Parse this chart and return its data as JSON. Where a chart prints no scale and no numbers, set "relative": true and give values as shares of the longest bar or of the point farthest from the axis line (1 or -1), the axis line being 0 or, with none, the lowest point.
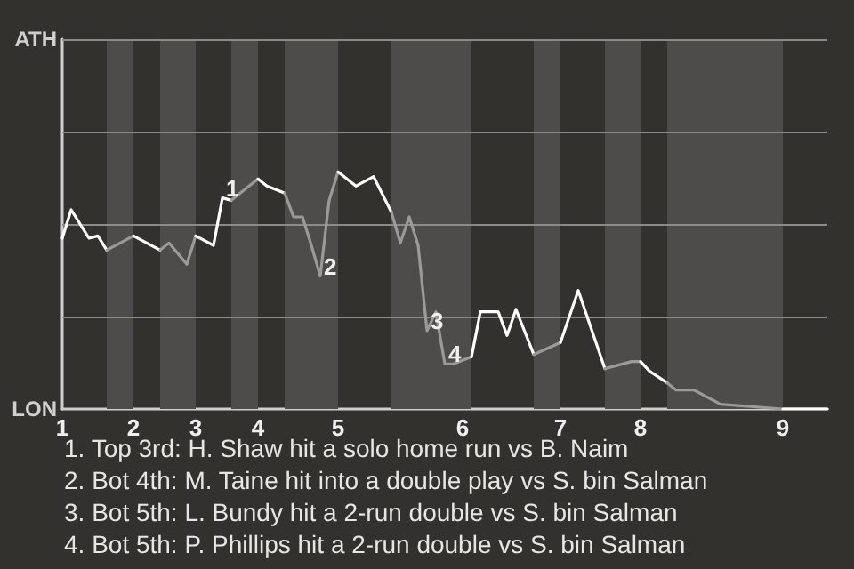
{
  "chart_data": {
    "type": "line",
    "relative": true,
    "categories": [
      "1",
      null,
      null,
      null,
      null,
      null,
      null,
      null,
      "2",
      null,
      null,
      null,
      null,
      null,
      null,
      "3",
      null,
      null,
      null,
      null,
      null,
      null,
      "4",
      null,
      null,
      null,
      null,
      null,
      null,
      null,
      null,
      "5",
      null,
      null,
      null,
      null,
      null,
      null,
      null,
      null,
      null,
      null,
      null,
      null,
      null,
      "6",
      null,
      null,
      null,
      null,
      null,
      null,
      null,
      null,
      null,
      null,
      "7",
      null,
      null,
      null,
      null,
      null,
      null,
      null,
      null,
      "8",
      null,
      null,
      null,
      null,
      null,
      null,
      null,
      null,
      null,
      null,
      null,
      null,
      null,
      null,
      null,
      "9",
      null,
      null,
      null,
      null,
      null
    ],
    "series": [
      {
        "color": "#ffffff",
        "values": [
          0.72,
          0.84,
          null,
          0.72,
          0.73,
          0.67,
          null,
          null,
          null,
          null,
          null,
          null,
          null,
          null,
          null,
          null,
          null,
          null,
          null,
          null,
          null,
          null,
          null,
          null,
          null,
          null,
          null,
          null,
          null,
          null,
          null,
          null,
          null,
          null,
          null,
          null,
          null,
          null,
          null,
          null,
          null,
          null,
          null,
          null,
          null,
          null,
          null,
          null,
          null,
          null,
          null,
          null,
          null,
          null,
          null,
          null,
          null,
          null,
          null,
          null,
          null,
          null,
          null,
          null,
          null,
          null,
          null,
          null,
          null,
          null,
          null,
          null,
          null,
          null,
          null,
          null,
          null,
          null,
          null,
          null,
          null,
          null,
          null,
          null,
          null,
          null,
          null
        ]
      },
      {
        "color": "#9a9a9a",
        "values": [
          null,
          null,
          null,
          null,
          null,
          0.67,
          null,
          null,
          0.73,
          null,
          null,
          null,
          null,
          null,
          null,
          null,
          null,
          null,
          null,
          null,
          null,
          null,
          null,
          null,
          null,
          null,
          null,
          null,
          null,
          null,
          null,
          null,
          null,
          null,
          null,
          null,
          null,
          null,
          null,
          null,
          null,
          null,
          null,
          null,
          null,
          null,
          null,
          null,
          null,
          null,
          null,
          null,
          null,
          null,
          null,
          null,
          null,
          null,
          null,
          null,
          null,
          null,
          null,
          null,
          null,
          null,
          null,
          null,
          null,
          null,
          null,
          null,
          null,
          null,
          null,
          null,
          null,
          null,
          null,
          null,
          null,
          null,
          null,
          null,
          null,
          null,
          null
        ]
      },
      {
        "color": "#ffffff",
        "values": [
          null,
          null,
          null,
          null,
          null,
          null,
          null,
          null,
          0.73,
          null,
          null,
          0.67,
          null,
          null,
          null,
          null,
          null,
          null,
          null,
          null,
          null,
          null,
          null,
          null,
          null,
          null,
          null,
          null,
          null,
          null,
          null,
          null,
          null,
          null,
          null,
          null,
          null,
          null,
          null,
          null,
          null,
          null,
          null,
          null,
          null,
          null,
          null,
          null,
          null,
          null,
          null,
          null,
          null,
          null,
          null,
          null,
          null,
          null,
          null,
          null,
          null,
          null,
          null,
          null,
          null,
          null,
          null,
          null,
          null,
          null,
          null,
          null,
          null,
          null,
          null,
          null,
          null,
          null,
          null,
          null,
          null,
          null,
          null,
          null,
          null,
          null,
          null
        ]
      },
      {
        "color": "#9a9a9a",
        "values": [
          null,
          null,
          null,
          null,
          null,
          null,
          null,
          null,
          null,
          null,
          null,
          0.67,
          0.7,
          null,
          0.61,
          0.73,
          null,
          null,
          null,
          null,
          null,
          null,
          null,
          null,
          null,
          null,
          null,
          null,
          null,
          null,
          null,
          null,
          null,
          null,
          null,
          null,
          null,
          null,
          null,
          null,
          null,
          null,
          null,
          null,
          null,
          null,
          null,
          null,
          null,
          null,
          null,
          null,
          null,
          null,
          null,
          null,
          null,
          null,
          null,
          null,
          null,
          null,
          null,
          null,
          null,
          null,
          null,
          null,
          null,
          null,
          null,
          null,
          null,
          null,
          null,
          null,
          null,
          null,
          null,
          null,
          null,
          null,
          null,
          null,
          null,
          null,
          null
        ]
      },
      {
        "color": "#ffffff",
        "values": [
          null,
          null,
          null,
          null,
          null,
          null,
          null,
          null,
          null,
          null,
          null,
          null,
          null,
          null,
          null,
          0.73,
          null,
          0.69,
          0.89,
          0.88,
          null,
          null,
          null,
          null,
          null,
          null,
          null,
          null,
          null,
          null,
          null,
          null,
          null,
          null,
          null,
          null,
          null,
          null,
          null,
          null,
          null,
          null,
          null,
          null,
          null,
          null,
          null,
          null,
          null,
          null,
          null,
          null,
          null,
          null,
          null,
          null,
          null,
          null,
          null,
          null,
          null,
          null,
          null,
          null,
          null,
          null,
          null,
          null,
          null,
          null,
          null,
          null,
          null,
          null,
          null,
          null,
          null,
          null,
          null,
          null,
          null,
          null,
          null,
          null,
          null,
          null,
          null
        ]
      },
      {
        "color": "#9a9a9a",
        "values": [
          null,
          null,
          null,
          null,
          null,
          null,
          null,
          null,
          null,
          null,
          null,
          null,
          null,
          null,
          null,
          null,
          null,
          null,
          null,
          0.88,
          null,
          null,
          0.97,
          null,
          null,
          null,
          null,
          null,
          null,
          null,
          null,
          null,
          null,
          null,
          null,
          null,
          null,
          null,
          null,
          null,
          null,
          null,
          null,
          null,
          null,
          null,
          null,
          null,
          null,
          null,
          null,
          null,
          null,
          null,
          null,
          null,
          null,
          null,
          null,
          null,
          null,
          null,
          null,
          null,
          null,
          null,
          null,
          null,
          null,
          null,
          null,
          null,
          null,
          null,
          null,
          null,
          null,
          null,
          null,
          null,
          null,
          null,
          null,
          null,
          null,
          null,
          null
        ]
      },
      {
        "color": "#ffffff",
        "values": [
          null,
          null,
          null,
          null,
          null,
          null,
          null,
          null,
          null,
          null,
          null,
          null,
          null,
          null,
          null,
          null,
          null,
          null,
          null,
          null,
          null,
          null,
          0.97,
          0.94,
          null,
          0.91,
          null,
          null,
          null,
          null,
          null,
          null,
          null,
          null,
          null,
          null,
          null,
          null,
          null,
          null,
          null,
          null,
          null,
          null,
          null,
          null,
          null,
          null,
          null,
          null,
          null,
          null,
          null,
          null,
          null,
          null,
          null,
          null,
          null,
          null,
          null,
          null,
          null,
          null,
          null,
          null,
          null,
          null,
          null,
          null,
          null,
          null,
          null,
          null,
          null,
          null,
          null,
          null,
          null,
          null,
          null,
          null,
          null,
          null,
          null,
          null,
          null
        ]
      },
      {
        "color": "#9a9a9a",
        "values": [
          null,
          null,
          null,
          null,
          null,
          null,
          null,
          null,
          null,
          null,
          null,
          null,
          null,
          null,
          null,
          null,
          null,
          null,
          null,
          null,
          null,
          null,
          null,
          null,
          null,
          0.91,
          0.81,
          0.81,
          0.69,
          0.56,
          0.88,
          1,
          null,
          null,
          null,
          null,
          null,
          null,
          null,
          null,
          null,
          null,
          null,
          null,
          null,
          null,
          null,
          null,
          null,
          null,
          null,
          null,
          null,
          null,
          null,
          null,
          null,
          null,
          null,
          null,
          null,
          null,
          null,
          null,
          null,
          null,
          null,
          null,
          null,
          null,
          null,
          null,
          null,
          null,
          null,
          null,
          null,
          null,
          null,
          null,
          null,
          null,
          null,
          null,
          null,
          null,
          null
        ]
      },
      {
        "color": "#ffffff",
        "values": [
          null,
          null,
          null,
          null,
          null,
          null,
          null,
          null,
          null,
          null,
          null,
          null,
          null,
          null,
          null,
          null,
          null,
          null,
          null,
          null,
          null,
          null,
          null,
          null,
          null,
          null,
          null,
          null,
          null,
          null,
          null,
          1,
          null,
          0.94,
          null,
          0.98,
          null,
          0.83,
          null,
          null,
          null,
          null,
          null,
          null,
          null,
          null,
          null,
          null,
          null,
          null,
          null,
          null,
          null,
          null,
          null,
          null,
          null,
          null,
          null,
          null,
          null,
          null,
          null,
          null,
          null,
          null,
          null,
          null,
          null,
          null,
          null,
          null,
          null,
          null,
          null,
          null,
          null,
          null,
          null,
          null,
          null,
          null,
          null,
          null,
          null,
          null,
          null
        ]
      },
      {
        "color": "#9a9a9a",
        "values": [
          null,
          null,
          null,
          null,
          null,
          null,
          null,
          null,
          null,
          null,
          null,
          null,
          null,
          null,
          null,
          null,
          null,
          null,
          null,
          null,
          null,
          null,
          null,
          null,
          null,
          null,
          null,
          null,
          null,
          null,
          null,
          null,
          null,
          null,
          null,
          null,
          null,
          0.83,
          0.7,
          0.81,
          0.69,
          0.33,
          0.41,
          0.19,
          0.19,
          null,
          0.22,
          null,
          null,
          null,
          null,
          null,
          null,
          null,
          null,
          null,
          null,
          null,
          null,
          null,
          null,
          null,
          null,
          null,
          null,
          null,
          null,
          null,
          null,
          null,
          null,
          null,
          null,
          null,
          null,
          null,
          null,
          null,
          null,
          null,
          null,
          null,
          null,
          null,
          null,
          null,
          null
        ]
      },
      {
        "color": "#ffffff",
        "values": [
          null,
          null,
          null,
          null,
          null,
          null,
          null,
          null,
          null,
          null,
          null,
          null,
          null,
          null,
          null,
          null,
          null,
          null,
          null,
          null,
          null,
          null,
          null,
          null,
          null,
          null,
          null,
          null,
          null,
          null,
          null,
          null,
          null,
          null,
          null,
          null,
          null,
          null,
          null,
          null,
          null,
          null,
          null,
          null,
          null,
          null,
          0.22,
          0.41,
          null,
          0.41,
          0.31,
          0.42,
          null,
          0.23,
          null,
          null,
          null,
          null,
          null,
          null,
          null,
          null,
          null,
          null,
          null,
          null,
          null,
          null,
          null,
          null,
          null,
          null,
          null,
          null,
          null,
          null,
          null,
          null,
          null,
          null,
          null,
          null,
          null,
          null,
          null,
          null,
          null
        ]
      },
      {
        "color": "#9a9a9a",
        "values": [
          null,
          null,
          null,
          null,
          null,
          null,
          null,
          null,
          null,
          null,
          null,
          null,
          null,
          null,
          null,
          null,
          null,
          null,
          null,
          null,
          null,
          null,
          null,
          null,
          null,
          null,
          null,
          null,
          null,
          null,
          null,
          null,
          null,
          null,
          null,
          null,
          null,
          null,
          null,
          null,
          null,
          null,
          null,
          null,
          null,
          null,
          null,
          null,
          null,
          null,
          null,
          null,
          null,
          0.23,
          null,
          null,
          0.28,
          null,
          null,
          null,
          null,
          null,
          null,
          null,
          null,
          null,
          null,
          null,
          null,
          null,
          null,
          null,
          null,
          null,
          null,
          null,
          null,
          null,
          null,
          null,
          null,
          null,
          null,
          null,
          null,
          null,
          null
        ]
      },
      {
        "color": "#ffffff",
        "values": [
          null,
          null,
          null,
          null,
          null,
          null,
          null,
          null,
          null,
          null,
          null,
          null,
          null,
          null,
          null,
          null,
          null,
          null,
          null,
          null,
          null,
          null,
          null,
          null,
          null,
          null,
          null,
          null,
          null,
          null,
          null,
          null,
          null,
          null,
          null,
          null,
          null,
          null,
          null,
          null,
          null,
          null,
          null,
          null,
          null,
          null,
          null,
          null,
          null,
          null,
          null,
          null,
          null,
          null,
          null,
          null,
          0.28,
          null,
          0.5,
          null,
          null,
          0.17,
          null,
          null,
          null,
          null,
          null,
          null,
          null,
          null,
          null,
          null,
          null,
          null,
          null,
          null,
          null,
          null,
          null,
          null,
          null,
          null,
          null,
          null,
          null,
          null,
          null
        ]
      },
      {
        "color": "#9a9a9a",
        "values": [
          null,
          null,
          null,
          null,
          null,
          null,
          null,
          null,
          null,
          null,
          null,
          null,
          null,
          null,
          null,
          null,
          null,
          null,
          null,
          null,
          null,
          null,
          null,
          null,
          null,
          null,
          null,
          null,
          null,
          null,
          null,
          null,
          null,
          null,
          null,
          null,
          null,
          null,
          null,
          null,
          null,
          null,
          null,
          null,
          null,
          null,
          null,
          null,
          null,
          null,
          null,
          null,
          null,
          null,
          null,
          null,
          null,
          null,
          null,
          null,
          null,
          0.17,
          null,
          null,
          0.2,
          0.2,
          null,
          null,
          null,
          null,
          null,
          null,
          null,
          null,
          null,
          null,
          null,
          null,
          null,
          null,
          null,
          null,
          null,
          null,
          null,
          null,
          null
        ]
      },
      {
        "color": "#ffffff",
        "values": [
          null,
          null,
          null,
          null,
          null,
          null,
          null,
          null,
          null,
          null,
          null,
          null,
          null,
          null,
          null,
          null,
          null,
          null,
          null,
          null,
          null,
          null,
          null,
          null,
          null,
          null,
          null,
          null,
          null,
          null,
          null,
          null,
          null,
          null,
          null,
          null,
          null,
          null,
          null,
          null,
          null,
          null,
          null,
          null,
          null,
          null,
          null,
          null,
          null,
          null,
          null,
          null,
          null,
          null,
          null,
          null,
          null,
          null,
          null,
          null,
          null,
          null,
          null,
          null,
          null,
          0.2,
          0.16,
          null,
          0.11,
          null,
          null,
          null,
          null,
          null,
          null,
          null,
          null,
          null,
          null,
          null,
          null,
          null,
          null,
          null,
          null,
          null,
          null
        ]
      },
      {
        "color": "#9a9a9a",
        "values": [
          null,
          null,
          null,
          null,
          null,
          null,
          null,
          null,
          null,
          null,
          null,
          null,
          null,
          null,
          null,
          null,
          null,
          null,
          null,
          null,
          null,
          null,
          null,
          null,
          null,
          null,
          null,
          null,
          null,
          null,
          null,
          null,
          null,
          null,
          null,
          null,
          null,
          null,
          null,
          null,
          null,
          null,
          null,
          null,
          null,
          null,
          null,
          null,
          null,
          null,
          null,
          null,
          null,
          null,
          null,
          null,
          null,
          null,
          null,
          null,
          null,
          null,
          null,
          null,
          null,
          null,
          null,
          null,
          0.11,
          0.08,
          null,
          0.08,
          null,
          null,
          0.02,
          null,
          null,
          null,
          null,
          null,
          null,
          0,
          null,
          null,
          null,
          null,
          null
        ]
      },
      {
        "color": "#ffffff",
        "values": [
          null,
          null,
          null,
          null,
          null,
          null,
          null,
          null,
          null,
          null,
          null,
          null,
          null,
          null,
          null,
          null,
          null,
          null,
          null,
          null,
          null,
          null,
          null,
          null,
          null,
          null,
          null,
          null,
          null,
          null,
          null,
          null,
          null,
          null,
          null,
          null,
          null,
          null,
          null,
          null,
          null,
          null,
          null,
          null,
          null,
          null,
          null,
          null,
          null,
          null,
          null,
          null,
          null,
          null,
          null,
          null,
          null,
          null,
          null,
          null,
          null,
          null,
          null,
          null,
          null,
          null,
          null,
          null,
          null,
          null,
          null,
          null,
          null,
          null,
          null,
          null,
          null,
          null,
          null,
          null,
          null,
          0,
          null,
          null,
          null,
          null,
          0
        ]
      }
    ],
    "line_style": "solid",
    "ref_lines": [
      {
        "axis": "y",
        "value": 0.39,
        "color": "#8a8a8a"
      },
      {
        "axis": "y",
        "value": 0.78,
        "color": "#8a8a8a"
      },
      {
        "axis": "y",
        "value": 1.17,
        "color": "#8a8a8a"
      },
      {
        "axis": "y",
        "value": 1.56,
        "color": "#8a8a8a"
      }
    ],
    "annotations": [
      "ATH",
      "LON",
      {
        "text": "1",
        "y": 0.89
      },
      {
        "text": "2",
        "y": 0.56
      },
      {
        "text": "3",
        "y": 0.33
      },
      {
        "text": "4",
        "y": 0.19
      },
      "1. Top 3rd: H. Shaw hit a solo home run vs B. Naim",
      "2. Bot 4th: M. Taine hit into a double play vs S. bin Salman",
      "3. Bot 5th: L. Bundy hit a 2-run double vs S. bin Salman",
      "4. Bot 5th: P. Phillips hit a 2-run double vs S. bin Salman"
    ]
  }
}
